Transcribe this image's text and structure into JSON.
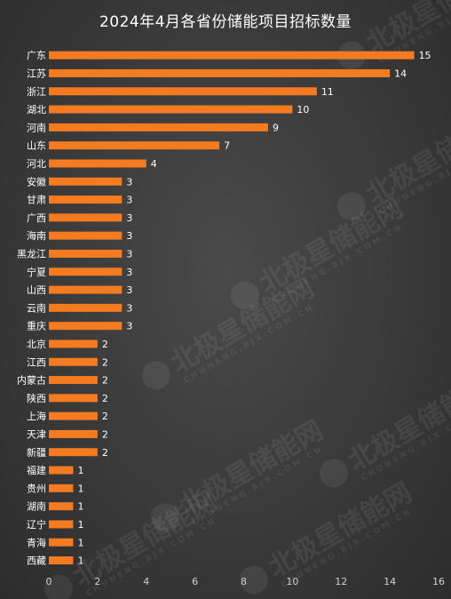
{
  "chart_data": {
    "type": "bar",
    "orientation": "horizontal",
    "title": "2024年4月各省份储能项目招标数量",
    "categories": [
      "广东",
      "江苏",
      "浙江",
      "湖北",
      "河南",
      "山东",
      "河北",
      "安徽",
      "甘肃",
      "广西",
      "海南",
      "黑龙江",
      "宁夏",
      "山西",
      "云南",
      "重庆",
      "北京",
      "江西",
      "内蒙古",
      "陕西",
      "上海",
      "天津",
      "新疆",
      "福建",
      "贵州",
      "湖南",
      "辽宁",
      "青海",
      "西藏"
    ],
    "values": [
      15,
      14,
      11,
      10,
      9,
      7,
      4,
      3,
      3,
      3,
      3,
      3,
      3,
      3,
      3,
      3,
      2,
      2,
      2,
      2,
      2,
      2,
      2,
      1,
      1,
      1,
      1,
      1,
      1
    ],
    "xlim": [
      0,
      16
    ],
    "xticks": [
      0,
      2,
      4,
      6,
      8,
      10,
      12,
      14,
      16
    ],
    "grid": false,
    "legend": "none",
    "bar_color": "#f47b20"
  },
  "watermark": {
    "text": "北极星储能网",
    "subtext": "CHUNENG.BJX.COM.CN"
  }
}
